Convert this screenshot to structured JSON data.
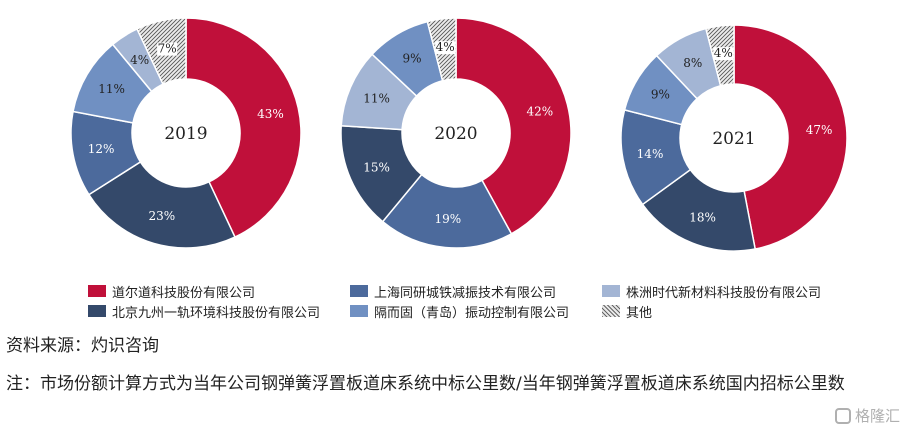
{
  "chart_data": [
    {
      "type": "pie",
      "title": "2019",
      "categories": [
        "道尔道科技股份有限公司",
        "北京九州一轨环境科技股份有限公司",
        "上海同研城铁减振技术有限公司",
        "隔而固（青岛）振动控制有限公司",
        "株洲时代新材料科技股份有限公司",
        "其他"
      ],
      "values": [
        43,
        23,
        12,
        11,
        4,
        7
      ],
      "labels": [
        "43%",
        "23%",
        "12%",
        "11%",
        "4%",
        "7%"
      ]
    },
    {
      "type": "pie",
      "title": "2020",
      "categories": [
        "道尔道科技股份有限公司",
        "上海同研城铁减振技术有限公司",
        "北京九州一轨环境科技股份有限公司",
        "株洲时代新材料科技股份有限公司",
        "隔而固（青岛）振动控制有限公司",
        "其他"
      ],
      "values": [
        42,
        19,
        15,
        11,
        9,
        4
      ],
      "labels": [
        "42%",
        "19%",
        "15%",
        "11%",
        "9%",
        "4%"
      ]
    },
    {
      "type": "pie",
      "title": "2021",
      "categories": [
        "道尔道科技股份有限公司",
        "北京九州一轨环境科技股份有限公司",
        "上海同研城铁减振技术有限公司",
        "隔而固（青岛）振动控制有限公司",
        "株洲时代新材料科技股份有限公司",
        "其他"
      ],
      "values": [
        47,
        18,
        14,
        9,
        8,
        4
      ],
      "labels": [
        "47%",
        "18%",
        "14%",
        "9%",
        "8%",
        "4%"
      ]
    }
  ],
  "colors": {
    "道尔道科技股份有限公司": "#c0103a",
    "北京九州一轨环境科技股份有限公司": "#34496a",
    "上海同研城铁减振技术有限公司": "#4c6a9c",
    "隔而固（青岛）振动控制有限公司": "#7090c2",
    "株洲时代新材料科技股份有限公司": "#a3b5d4",
    "其他": "hatch"
  },
  "legend": {
    "rows": [
      [
        "道尔道科技股份有限公司",
        "上海同研城铁减振技术有限公司",
        "株洲时代新材料科技股份有限公司"
      ],
      [
        "北京九州一轨环境科技股份有限公司",
        "隔而固（青岛）振动控制有限公司",
        "其他"
      ]
    ],
    "placement": "bottom"
  },
  "source": "资料来源：灼识咨询",
  "note": "注：市场份额计算方式为当年公司钢弹簧浮置板道床系统中标公里数/当年钢弹簧浮置板道床系统国内招标公里数",
  "watermark": "格隆汇"
}
